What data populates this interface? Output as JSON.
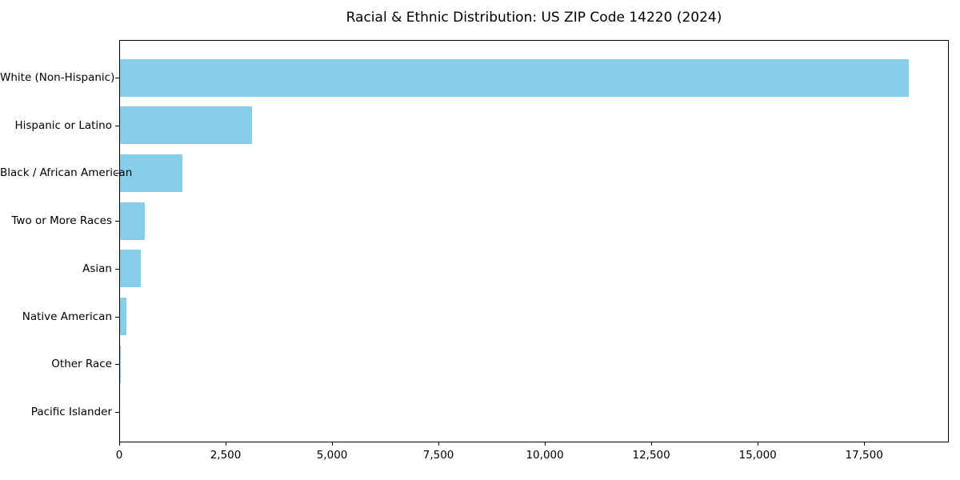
{
  "chart_data": {
    "type": "bar",
    "orientation": "horizontal",
    "title": "Racial & Ethnic Distribution: US ZIP Code 14220 (2024)",
    "categories": [
      "White (Non-Hispanic)",
      "Hispanic or Latino",
      "Black / African American",
      "Two or More Races",
      "Asian",
      "Native American",
      "Other Race",
      "Pacific Islander"
    ],
    "values": [
      18550,
      3100,
      1460,
      580,
      490,
      150,
      20,
      0
    ],
    "xlabel": "",
    "ylabel": "",
    "xlim": [
      0,
      19470
    ],
    "x_ticks": [
      0,
      2500,
      5000,
      7500,
      10000,
      12500,
      15000,
      17500
    ],
    "x_tick_labels": [
      "0",
      "2,500",
      "5,000",
      "7,500",
      "10,000",
      "12,500",
      "15,000",
      "17,500"
    ],
    "bar_color": "#87CEEB",
    "frame_color": "#000000",
    "grid": false,
    "legend": "none"
  }
}
